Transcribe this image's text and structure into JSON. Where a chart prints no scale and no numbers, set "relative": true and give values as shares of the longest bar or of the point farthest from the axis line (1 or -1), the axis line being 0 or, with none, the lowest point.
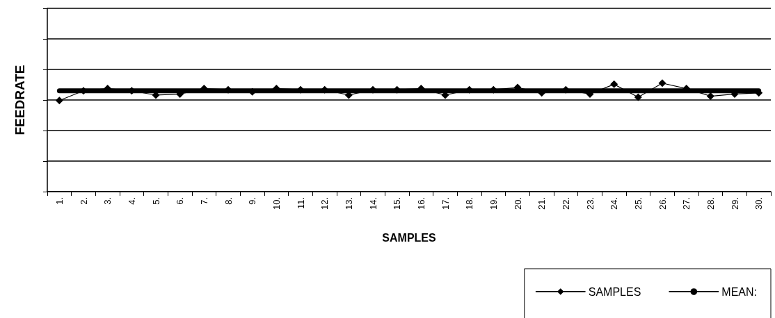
{
  "chart_data": {
    "type": "line",
    "relative": true,
    "xlabel": "SAMPLES",
    "ylabel": "FEEDRATE",
    "categories": [
      "1.",
      "2.",
      "3.",
      "4.",
      "5.",
      "6.",
      "7.",
      "8.",
      "9.",
      "10.",
      "11.",
      "12.",
      "13.",
      "14.",
      "15.",
      "16.",
      "17.",
      "18.",
      "19.",
      "20.",
      "21.",
      "22.",
      "23.",
      "24.",
      "25.",
      "26.",
      "27.",
      "28.",
      "29.",
      "30."
    ],
    "series": [
      {
        "name": "SAMPLES",
        "color": "#000000",
        "marker": "diamond",
        "values": [
          0.84,
          0.93,
          0.95,
          0.93,
          0.89,
          0.9,
          0.95,
          0.94,
          0.92,
          0.95,
          0.94,
          0.94,
          0.89,
          0.94,
          0.94,
          0.95,
          0.89,
          0.94,
          0.94,
          0.96,
          0.91,
          0.94,
          0.9,
          0.99,
          0.87,
          1,
          0.95,
          0.88,
          0.9,
          0.91
        ]
      },
      {
        "name": "MEAN:",
        "color": "#000000",
        "marker": "none",
        "values": [
          0.93,
          0.93,
          0.93,
          0.93,
          0.93,
          0.93,
          0.93,
          0.93,
          0.93,
          0.93,
          0.93,
          0.93,
          0.93,
          0.93,
          0.93,
          0.93,
          0.93,
          0.93,
          0.93,
          0.93,
          0.93,
          0.93,
          0.93,
          0.93,
          0.93,
          0.93,
          0.93,
          0.93,
          0.93,
          0.93
        ]
      }
    ],
    "grid": "y",
    "legend": "bottom right"
  }
}
